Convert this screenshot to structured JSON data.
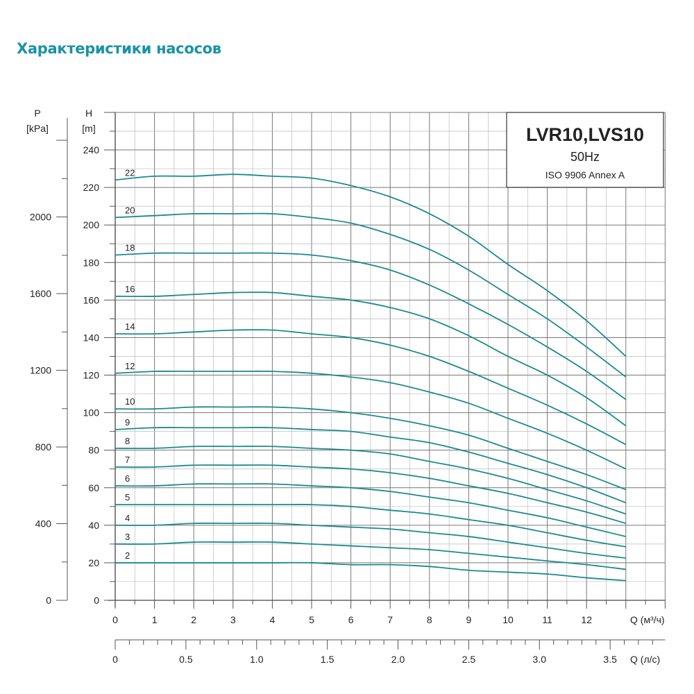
{
  "page_title": "Характеристики насосов",
  "chart_data": {
    "type": "line",
    "legend_box": {
      "model": "LVR10,LVS10",
      "frequency": "50Hz",
      "standard": "ISO 9906 Annex A",
      "placement": "top-right"
    },
    "y_axis": {
      "label": "H",
      "unit": "[m]",
      "range": [
        0,
        260
      ],
      "ticks": [
        0,
        20,
        40,
        60,
        80,
        100,
        120,
        140,
        160,
        180,
        200,
        220,
        240
      ]
    },
    "y2_axis": {
      "label": "P",
      "unit": "[kPa]",
      "ticks": [
        0,
        400,
        800,
        1200,
        1600,
        2000
      ]
    },
    "x_axis": {
      "label": "Q (м³/ч)",
      "range": [
        0,
        14
      ],
      "ticks": [
        0,
        1,
        2,
        3,
        4,
        5,
        6,
        7,
        8,
        9,
        10,
        11,
        12
      ]
    },
    "x2_axis": {
      "label": "Q (л/с)",
      "ticks": [
        "0",
        "0.5",
        "1.0",
        "1.5",
        "2.0",
        "2.5",
        "3.0",
        "3.5"
      ],
      "tick_values": [
        0,
        0.5,
        1.0,
        1.5,
        2.0,
        2.5,
        3.0,
        3.5
      ]
    },
    "grid": true,
    "line_color": "#1a8a90",
    "x": [
      0,
      1,
      2,
      3,
      4,
      5,
      6,
      7,
      8,
      9,
      10,
      11,
      12,
      13
    ],
    "series": [
      {
        "name": "22",
        "values": [
          224,
          226,
          226,
          227,
          226,
          225,
          221,
          215,
          206,
          194,
          179,
          165,
          149,
          130
        ]
      },
      {
        "name": "20",
        "values": [
          204,
          205,
          206,
          206,
          206,
          204,
          201,
          195,
          187,
          176,
          163,
          150,
          135,
          119
        ]
      },
      {
        "name": "18",
        "values": [
          184,
          185,
          185,
          185,
          185,
          184,
          181,
          176,
          168,
          158,
          147,
          135,
          122,
          107
        ]
      },
      {
        "name": "16",
        "values": [
          162,
          162,
          163,
          164,
          164,
          162,
          160,
          156,
          150,
          141,
          130,
          120,
          108,
          93
        ]
      },
      {
        "name": "14",
        "values": [
          142,
          142,
          143,
          144,
          144,
          142,
          140,
          136,
          130,
          122,
          113,
          104,
          94,
          83
        ]
      },
      {
        "name": "12",
        "values": [
          121,
          122,
          122,
          122,
          122,
          121,
          119,
          116,
          111,
          105,
          97,
          89,
          80,
          70
        ]
      },
      {
        "name": "10",
        "values": [
          102,
          102,
          103,
          103,
          103,
          102,
          100,
          97,
          93,
          88,
          81,
          74,
          67,
          59
        ]
      },
      {
        "name": "9",
        "values": [
          91,
          92,
          92,
          92,
          92,
          91,
          90,
          87,
          84,
          79,
          73,
          67,
          60,
          52
        ]
      },
      {
        "name": "8",
        "values": [
          81,
          81,
          82,
          82,
          82,
          81,
          80,
          78,
          74,
          70,
          65,
          59,
          53,
          46
        ]
      },
      {
        "name": "7",
        "values": [
          71,
          71,
          72,
          72,
          72,
          71,
          70,
          68,
          65,
          61,
          57,
          52,
          47,
          41
        ]
      },
      {
        "name": "6",
        "values": [
          61,
          61,
          62,
          62,
          62,
          61,
          60,
          58,
          55,
          52,
          48,
          44,
          39,
          34
        ]
      },
      {
        "name": "5",
        "values": [
          51,
          51,
          51,
          51,
          51,
          51,
          50,
          48,
          46,
          43,
          40,
          36,
          32,
          28.5
        ]
      },
      {
        "name": "4",
        "values": [
          40,
          40,
          41,
          41,
          41,
          40,
          39,
          38,
          36,
          34,
          31,
          28,
          25,
          22.5
        ]
      },
      {
        "name": "3",
        "values": [
          30,
          30,
          31,
          31,
          31,
          30,
          29,
          28,
          27,
          25,
          23,
          21,
          19,
          16.5
        ]
      },
      {
        "name": "2",
        "values": [
          20,
          20,
          20,
          20,
          20,
          20,
          19,
          19,
          18,
          16,
          15,
          14,
          12,
          10.5
        ]
      }
    ]
  }
}
